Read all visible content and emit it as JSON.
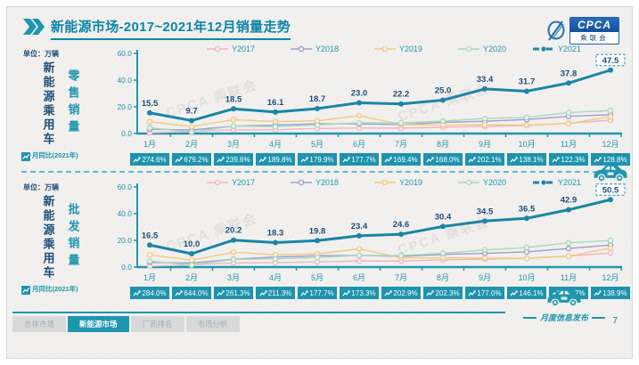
{
  "header": {
    "title": "新能源市场-2017~2021年12月销量走势",
    "logo": {
      "name": "CPCA",
      "sub": "乘联会"
    }
  },
  "watermark": "CPCA 乘联会",
  "chart_data": [
    {
      "type": "line",
      "title": "新能源乘用车零售销量",
      "unit_label": "单位：万辆",
      "side_label": "新能源乘用车",
      "measure_label": "零售销量",
      "categories": [
        "1月",
        "2月",
        "3月",
        "4月",
        "5月",
        "6月",
        "7月",
        "8月",
        "9月",
        "10月",
        "11月",
        "12月"
      ],
      "ylim": [
        0,
        60
      ],
      "y_ticks": [
        0,
        20,
        40,
        60
      ],
      "legend_position": "top",
      "series": [
        {
          "name": "Y2017",
          "color": "#f4b3c2",
          "values": [
            0.5,
            1.6,
            2.7,
            2.9,
            3.8,
            4.1,
            4.0,
            4.7,
            5.4,
            6.0,
            7.7,
            10.0
          ]
        },
        {
          "name": "Y2018",
          "color": "#9e9ed0",
          "values": [
            3.2,
            2.7,
            5.5,
            6.3,
            7.3,
            7.2,
            6.7,
            8.4,
            9.2,
            10.5,
            12.9,
            14.1
          ]
        },
        {
          "name": "Y2019",
          "color": "#f6c87f",
          "values": [
            8.9,
            5.1,
            10.4,
            9.0,
            9.5,
            13.4,
            6.8,
            6.3,
            6.5,
            6.3,
            7.4,
            12.7
          ]
        },
        {
          "name": "Y2020",
          "color": "#a6d9bd",
          "values": [
            4.3,
            1.1,
            5.6,
            5.1,
            6.5,
            8.0,
            8.0,
            9.3,
            11.2,
            12.1,
            15.7,
            17.2
          ]
        },
        {
          "name": "Y2021",
          "color": "#1a85a6",
          "emphasis": true,
          "labeled": true,
          "values": [
            15.5,
            9.7,
            18.5,
            16.1,
            18.7,
            23.0,
            22.2,
            25.0,
            33.4,
            31.7,
            37.8,
            47.5
          ]
        }
      ],
      "yoy_row": {
        "label": "月同比(2021年)",
        "values": [
          "274.6%",
          "679.2%",
          "239.6%",
          "189.8%",
          "179.9%",
          "177.7%",
          "169.4%",
          "168.0%",
          "202.1%",
          "138.1%",
          "122.3%",
          "128.8%"
        ]
      }
    },
    {
      "type": "line",
      "title": "新能源乘用车批发销量",
      "unit_label": "单位：万辆",
      "side_label": "新能源乘用车",
      "measure_label": "批发销量",
      "categories": [
        "1月",
        "2月",
        "3月",
        "4月",
        "5月",
        "6月",
        "7月",
        "8月",
        "9月",
        "10月",
        "11月",
        "12月"
      ],
      "ylim": [
        0,
        60
      ],
      "y_ticks": [
        0,
        20,
        40,
        60
      ],
      "legend_position": "top",
      "series": [
        {
          "name": "Y2017",
          "color": "#f4b3c2",
          "values": [
            0.6,
            1.7,
            3.1,
            3.3,
            3.9,
            4.5,
            4.5,
            5.4,
            6.0,
            6.6,
            8.3,
            10.5
          ]
        },
        {
          "name": "Y2018",
          "color": "#9e9ed0",
          "values": [
            3.5,
            3.0,
            5.9,
            7.5,
            8.5,
            8.7,
            8.0,
            9.5,
            10.3,
            11.4,
            13.9,
            16.5
          ]
        },
        {
          "name": "Y2019",
          "color": "#f6c87f",
          "values": [
            9.1,
            5.2,
            11.1,
            9.2,
            9.9,
            13.7,
            6.9,
            6.9,
            6.7,
            6.5,
            8.2,
            14.1
          ]
        },
        {
          "name": "Y2020",
          "color": "#a6d9bd",
          "values": [
            4.5,
            1.5,
            5.8,
            6.1,
            7.2,
            8.7,
            8.6,
            10.3,
            12.8,
            14.6,
            18.2,
            19.9
          ]
        },
        {
          "name": "Y2021",
          "color": "#1a85a6",
          "emphasis": true,
          "labeled": true,
          "values": [
            16.5,
            10.0,
            20.2,
            18.3,
            19.8,
            23.4,
            24.6,
            30.4,
            34.5,
            36.5,
            42.9,
            50.5
          ]
        }
      ],
      "yoy_row": {
        "label": "月同比(2021年)",
        "values": [
          "284.0%",
          "644.0%",
          "261.3%",
          "211.3%",
          "177.7%",
          "173.3%",
          "202.9%",
          "202.3%",
          "177.0%",
          "146.1%",
          "131.7%",
          "138.9%"
        ]
      }
    }
  ],
  "footer": {
    "tabs": [
      {
        "label": "总体市场",
        "active": false
      },
      {
        "label": "新能源市场",
        "active": true
      },
      {
        "label": "厂商排名",
        "active": false
      },
      {
        "label": "市场分析",
        "active": false
      }
    ],
    "stamp": "月度信息发布",
    "page": "7"
  },
  "colors": {
    "accent": "#1e96b0",
    "navy": "#1f4e79",
    "emphasis": "#1a85a6",
    "badge": "#1d93ae",
    "title": "#0d85a8"
  }
}
